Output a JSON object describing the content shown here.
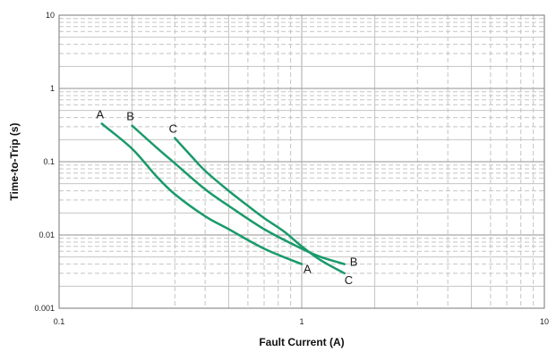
{
  "chart_data": {
    "type": "line",
    "title": "",
    "xlabel": "Fault Current (A)",
    "ylabel": "Time-to-Trip (s)",
    "x_scale": "log",
    "y_scale": "log",
    "xlim": [
      0.1,
      10
    ],
    "ylim": [
      0.001,
      10
    ],
    "x_ticks": [
      "0.1",
      "1",
      "10"
    ],
    "y_ticks": [
      "10",
      "1",
      "0.1",
      "0.01",
      "0.001"
    ],
    "grid": true,
    "curve_color": "#1a9a6a",
    "series": [
      {
        "name": "A",
        "x": [
          0.15,
          0.2,
          0.25,
          0.3,
          0.4,
          0.5,
          0.7,
          1.0
        ],
        "y": [
          0.33,
          0.15,
          0.065,
          0.036,
          0.018,
          0.012,
          0.0065,
          0.004
        ]
      },
      {
        "name": "B",
        "x": [
          0.2,
          0.25,
          0.3,
          0.4,
          0.5,
          0.7,
          1.0,
          1.2,
          1.5
        ],
        "y": [
          0.31,
          0.16,
          0.095,
          0.042,
          0.025,
          0.012,
          0.0065,
          0.005,
          0.004
        ]
      },
      {
        "name": "C",
        "x": [
          0.3,
          0.35,
          0.4,
          0.5,
          0.6,
          0.7,
          0.85,
          1.0,
          1.2,
          1.5
        ],
        "y": [
          0.21,
          0.12,
          0.075,
          0.04,
          0.025,
          0.017,
          0.011,
          0.007,
          0.0045,
          0.003
        ]
      }
    ]
  }
}
